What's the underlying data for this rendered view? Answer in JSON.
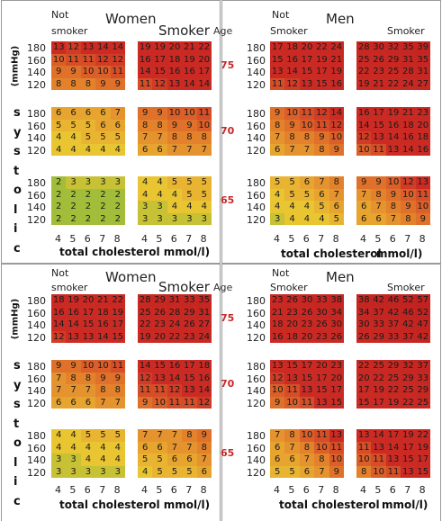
{
  "chart_data": {
    "type": "heatmap",
    "sbp_rows": [
      "180",
      "160",
      "140",
      "120"
    ],
    "chol_cols": [
      "4",
      "5",
      "6",
      "7",
      "8"
    ],
    "labels": {
      "women": "Women",
      "men": "Men",
      "not_smoker_women": [
        "Not",
        "smoker"
      ],
      "not_smoker_men": [
        "Not",
        "Smoker"
      ],
      "smoker": "Smoker",
      "age": "Age",
      "mmhg": "(mmHg)",
      "systolic": [
        "s",
        "y",
        "s",
        "t",
        "o",
        "l",
        "i",
        "c"
      ],
      "xlabel_women": "total cholesterol mmol/l)",
      "xlabel_men_a": "total cholesterol",
      "xlabel_men_b": "mmol/l)"
    },
    "ages": [
      "75",
      "70",
      "65"
    ],
    "colors": {
      "green": "#5bb43f",
      "yellow": "#e9c532",
      "orange": "#e4822c",
      "red": "#cc2b24",
      "dark_red": "#c0211f",
      "age_red": "#c62828"
    },
    "sections": [
      {
        "women_not_smoker": [
          [
            [
              13,
              12,
              13,
              14,
              14
            ],
            [
              10,
              11,
              11,
              12,
              12
            ],
            [
              9,
              9,
              10,
              10,
              11
            ],
            [
              8,
              8,
              8,
              9,
              9
            ]
          ],
          [
            [
              6,
              6,
              6,
              6,
              7
            ],
            [
              5,
              5,
              5,
              6,
              6
            ],
            [
              4,
              4,
              5,
              5,
              5
            ],
            [
              4,
              4,
              4,
              4,
              4
            ]
          ],
          [
            [
              2,
              3,
              3,
              3,
              3
            ],
            [
              2,
              2,
              2,
              2,
              2
            ],
            [
              2,
              2,
              2,
              2,
              2
            ],
            [
              2,
              2,
              2,
              2,
              2
            ]
          ]
        ],
        "women_smoker": [
          [
            [
              19,
              19,
              20,
              21,
              22
            ],
            [
              16,
              17,
              18,
              19,
              20
            ],
            [
              14,
              15,
              16,
              16,
              17
            ],
            [
              11,
              12,
              13,
              14,
              14
            ]
          ],
          [
            [
              9,
              9,
              10,
              10,
              11
            ],
            [
              8,
              8,
              9,
              9,
              10
            ],
            [
              7,
              7,
              8,
              8,
              8
            ],
            [
              6,
              6,
              7,
              7,
              7
            ]
          ],
          [
            [
              4,
              4,
              5,
              5,
              5
            ],
            [
              4,
              4,
              4,
              5,
              5
            ],
            [
              3,
              3,
              4,
              4,
              4
            ],
            [
              3,
              3,
              3,
              3,
              3
            ]
          ]
        ],
        "men_not_smoker": [
          [
            [
              17,
              18,
              20,
              22,
              24
            ],
            [
              15,
              16,
              17,
              19,
              21
            ],
            [
              13,
              14,
              15,
              17,
              19
            ],
            [
              11,
              12,
              13,
              15,
              16
            ]
          ],
          [
            [
              9,
              10,
              11,
              12,
              14
            ],
            [
              8,
              9,
              10,
              11,
              12
            ],
            [
              7,
              8,
              8,
              9,
              10
            ],
            [
              6,
              7,
              7,
              8,
              9
            ]
          ],
          [
            [
              5,
              5,
              6,
              7,
              8
            ],
            [
              4,
              5,
              5,
              6,
              7
            ],
            [
              4,
              4,
              4,
              5,
              6
            ],
            [
              3,
              4,
              4,
              4,
              5
            ]
          ]
        ],
        "men_smoker": [
          [
            [
              28,
              30,
              32,
              35,
              39
            ],
            [
              25,
              26,
              29,
              31,
              35
            ],
            [
              22,
              23,
              25,
              28,
              31
            ],
            [
              19,
              21,
              22,
              24,
              27
            ]
          ],
          [
            [
              16,
              17,
              19,
              21,
              23
            ],
            [
              14,
              15,
              16,
              18,
              20
            ],
            [
              12,
              13,
              14,
              16,
              18
            ],
            [
              10,
              11,
              13,
              14,
              16
            ]
          ],
          [
            [
              9,
              9,
              10,
              12,
              13
            ],
            [
              7,
              8,
              9,
              10,
              11
            ],
            [
              6,
              7,
              8,
              9,
              10
            ],
            [
              6,
              6,
              7,
              8,
              9
            ]
          ]
        ]
      },
      {
        "women_not_smoker": [
          [
            [
              18,
              19,
              20,
              21,
              22
            ],
            [
              16,
              16,
              17,
              18,
              19
            ],
            [
              14,
              14,
              15,
              16,
              17
            ],
            [
              12,
              13,
              13,
              14,
              15
            ]
          ],
          [
            [
              9,
              9,
              10,
              10,
              11
            ],
            [
              7,
              8,
              8,
              9,
              9
            ],
            [
              7,
              7,
              7,
              8,
              8
            ],
            [
              6,
              6,
              6,
              7,
              7
            ]
          ],
          [
            [
              4,
              4,
              5,
              5,
              5
            ],
            [
              4,
              4,
              4,
              4,
              4
            ],
            [
              3,
              3,
              4,
              4,
              4
            ],
            [
              3,
              3,
              3,
              3,
              3
            ]
          ]
        ],
        "women_smoker": [
          [
            [
              28,
              29,
              31,
              33,
              35
            ],
            [
              25,
              26,
              28,
              29,
              31
            ],
            [
              22,
              23,
              24,
              26,
              27
            ],
            [
              19,
              20,
              22,
              23,
              24
            ]
          ],
          [
            [
              14,
              15,
              16,
              17,
              18
            ],
            [
              12,
              13,
              14,
              15,
              16
            ],
            [
              11,
              11,
              12,
              13,
              14
            ],
            [
              9,
              10,
              11,
              11,
              12
            ]
          ],
          [
            [
              7,
              7,
              7,
              8,
              9
            ],
            [
              6,
              6,
              7,
              7,
              8
            ],
            [
              5,
              5,
              6,
              6,
              7
            ],
            [
              4,
              5,
              5,
              5,
              6
            ]
          ]
        ],
        "men_not_smoker": [
          [
            [
              23,
              26,
              30,
              33,
              38
            ],
            [
              21,
              23,
              26,
              30,
              34
            ],
            [
              18,
              20,
              23,
              26,
              30
            ],
            [
              16,
              18,
              20,
              23,
              26
            ]
          ],
          [
            [
              13,
              15,
              17,
              20,
              23
            ],
            [
              12,
              13,
              15,
              17,
              20
            ],
            [
              10,
              11,
              13,
              15,
              17
            ],
            [
              9,
              10,
              11,
              13,
              15
            ]
          ],
          [
            [
              7,
              8,
              10,
              11,
              13
            ],
            [
              6,
              7,
              8,
              10,
              11
            ],
            [
              6,
              6,
              7,
              8,
              10
            ],
            [
              5,
              5,
              6,
              7,
              9
            ]
          ]
        ],
        "men_smoker": [
          [
            [
              38,
              42,
              46,
              52,
              57
            ],
            [
              34,
              37,
              42,
              46,
              52
            ],
            [
              30,
              33,
              37,
              42,
              47
            ],
            [
              26,
              29,
              33,
              37,
              42
            ]
          ],
          [
            [
              22,
              25,
              29,
              32,
              37
            ],
            [
              20,
              22,
              25,
              29,
              33
            ],
            [
              17,
              19,
              22,
              25,
              29
            ],
            [
              15,
              17,
              19,
              22,
              25
            ]
          ],
          [
            [
              13,
              14,
              17,
              19,
              22
            ],
            [
              11,
              13,
              14,
              17,
              19
            ],
            [
              10,
              11,
              13,
              15,
              17
            ],
            [
              8,
              10,
              11,
              13,
              15
            ]
          ]
        ]
      }
    ]
  }
}
